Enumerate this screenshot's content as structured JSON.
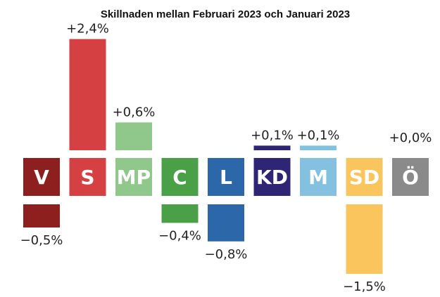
{
  "chart_data": {
    "type": "bar",
    "title": "Skillnaden mellan Februari 2023 och Januari 2023",
    "xlabel": "",
    "ylabel": "",
    "categories": [
      "V",
      "S",
      "MP",
      "C",
      "L",
      "KD",
      "M",
      "SD",
      "Ö"
    ],
    "values": [
      -0.5,
      2.4,
      0.6,
      -0.4,
      -0.8,
      0.1,
      0.1,
      -1.5,
      0.0
    ],
    "value_labels": [
      "−0,5%",
      "+2,4%",
      "+0,6%",
      "−0,4%",
      "−0,8%",
      "+0,1%",
      "+0,1%",
      "−1,5%",
      "+0,0%"
    ],
    "colors": [
      "#8e1f1f",
      "#d54143",
      "#8fc88a",
      "#4aa046",
      "#2b67a9",
      "#2e2574",
      "#84c0e0",
      "#f9c55c",
      "#8a8a8a"
    ],
    "ylim": [
      -1.5,
      2.4
    ],
    "grid": false,
    "legend": "none"
  }
}
